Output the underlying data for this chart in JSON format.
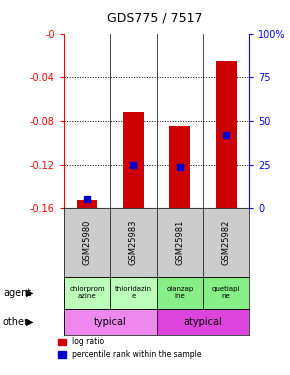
{
  "title": "GDS775 / 7517",
  "samples": [
    "GSM25980",
    "GSM25983",
    "GSM25981",
    "GSM25982"
  ],
  "log_ratios": [
    -0.153,
    -0.072,
    -0.085,
    -0.025
  ],
  "percentile_ranks": [
    0.05,
    0.25,
    0.235,
    0.42
  ],
  "ylim_left": [
    -0.16,
    0.0
  ],
  "yticks_left": [
    0.0,
    -0.04,
    -0.08,
    -0.12,
    -0.16
  ],
  "ytick_labels_left": [
    "-0",
    "-0.04",
    "-0.08",
    "-0.12",
    "-0.16"
  ],
  "yticks_right": [
    0.0,
    0.25,
    0.5,
    0.75,
    1.0
  ],
  "ytick_labels_right": [
    "0",
    "25",
    "50",
    "75",
    "100%"
  ],
  "agent_texts": [
    "chlorprom\nazine",
    "thioridazin\ne",
    "olanzap\nine",
    "quetiapi\nne"
  ],
  "agent_colors": [
    "#bbffbb",
    "#bbffbb",
    "#88ee88",
    "#88ee88"
  ],
  "typical_color": "#ee88ee",
  "atypical_color": "#dd44dd",
  "bar_color": "#cc0000",
  "percentile_color": "#0000cc",
  "bg_gray": "#cccccc"
}
